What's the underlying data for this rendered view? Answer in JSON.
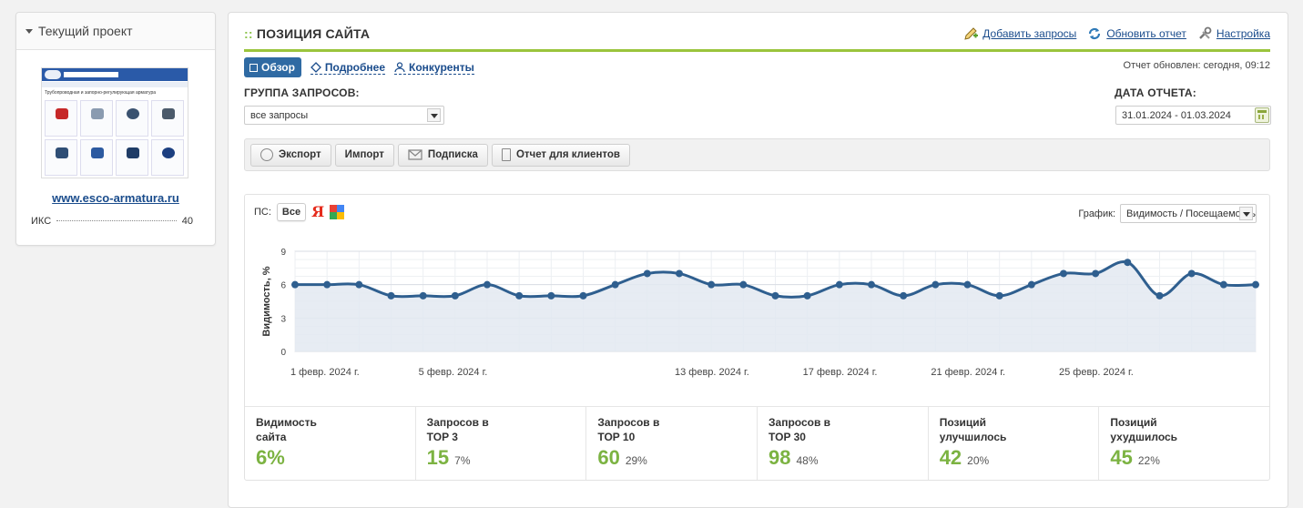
{
  "sidebar": {
    "title": "Текущий проект",
    "thumb_text": "Трубопроводная и запорно-регулирующая арматура",
    "site_link": "www.esco-armatura.ru",
    "iks_label": "ИКС",
    "iks_value": "40"
  },
  "header": {
    "prefix": "::",
    "title": "ПОЗИЦИЯ САЙТА",
    "links": {
      "add": "Добавить запросы",
      "refresh": "Обновить отчет",
      "settings": "Настройка"
    }
  },
  "subnav": {
    "overview": "Обзор",
    "details": "Подробнее",
    "competitors": "Конкуренты"
  },
  "updated": "Отчет обновлен: сегодня, 09:12",
  "query_group": {
    "label": "ГРУППА ЗАПРОСОВ:",
    "value": "все запросы"
  },
  "report_date": {
    "label": "ДАТА ОТЧЕТА:",
    "value": "31.01.2024 - 01.03.2024"
  },
  "toolbar": {
    "export": "Экспорт",
    "import": "Импорт",
    "subscribe": "Подписка",
    "clients": "Отчет для клиентов"
  },
  "ps": {
    "label": "ПС:",
    "all": "Все",
    "yandex": "Я"
  },
  "graph_select": {
    "label": "График:",
    "value": "Видимость / Посещаемость"
  },
  "colors": {
    "accent": "#9ac43c",
    "line": "#2f5f8f",
    "fill": "#e3e9f1",
    "green": "#7cb342",
    "brand": "#2f6aa3"
  },
  "chart_data": {
    "type": "area",
    "ylabel": "Видимость, %",
    "ylim": [
      0,
      9
    ],
    "yticks": [
      0,
      3,
      6,
      9
    ],
    "x_labels": [
      {
        "index": 0,
        "label": "1 февр. 2024 г."
      },
      {
        "index": 4,
        "label": "5 февр. 2024 г."
      },
      {
        "index": 12,
        "label": "13 февр. 2024 г."
      },
      {
        "index": 16,
        "label": "17 февр. 2024 г."
      },
      {
        "index": 20,
        "label": "21 февр. 2024 г."
      },
      {
        "index": 24,
        "label": "25 февр. 2024 г."
      }
    ],
    "values": [
      6,
      6,
      6,
      5,
      5,
      5,
      6,
      5,
      5,
      5,
      6,
      7,
      7,
      6,
      6,
      5,
      5,
      6,
      6,
      5,
      6,
      6,
      5,
      6,
      7,
      7,
      8,
      5,
      7,
      6,
      6
    ]
  },
  "stats": [
    {
      "label": "Видимость\nсайта",
      "value": "6%",
      "pct": ""
    },
    {
      "label": "Запросов в\nTOP 3",
      "value": "15",
      "pct": "7%"
    },
    {
      "label": "Запросов в\nTOP 10",
      "value": "60",
      "pct": "29%"
    },
    {
      "label": "Запросов в\nTOP 30",
      "value": "98",
      "pct": "48%"
    },
    {
      "label": "Позиций\nулучшилось",
      "value": "42",
      "pct": "20%"
    },
    {
      "label": "Позиций\nухудшилось",
      "value": "45",
      "pct": "22%"
    }
  ]
}
